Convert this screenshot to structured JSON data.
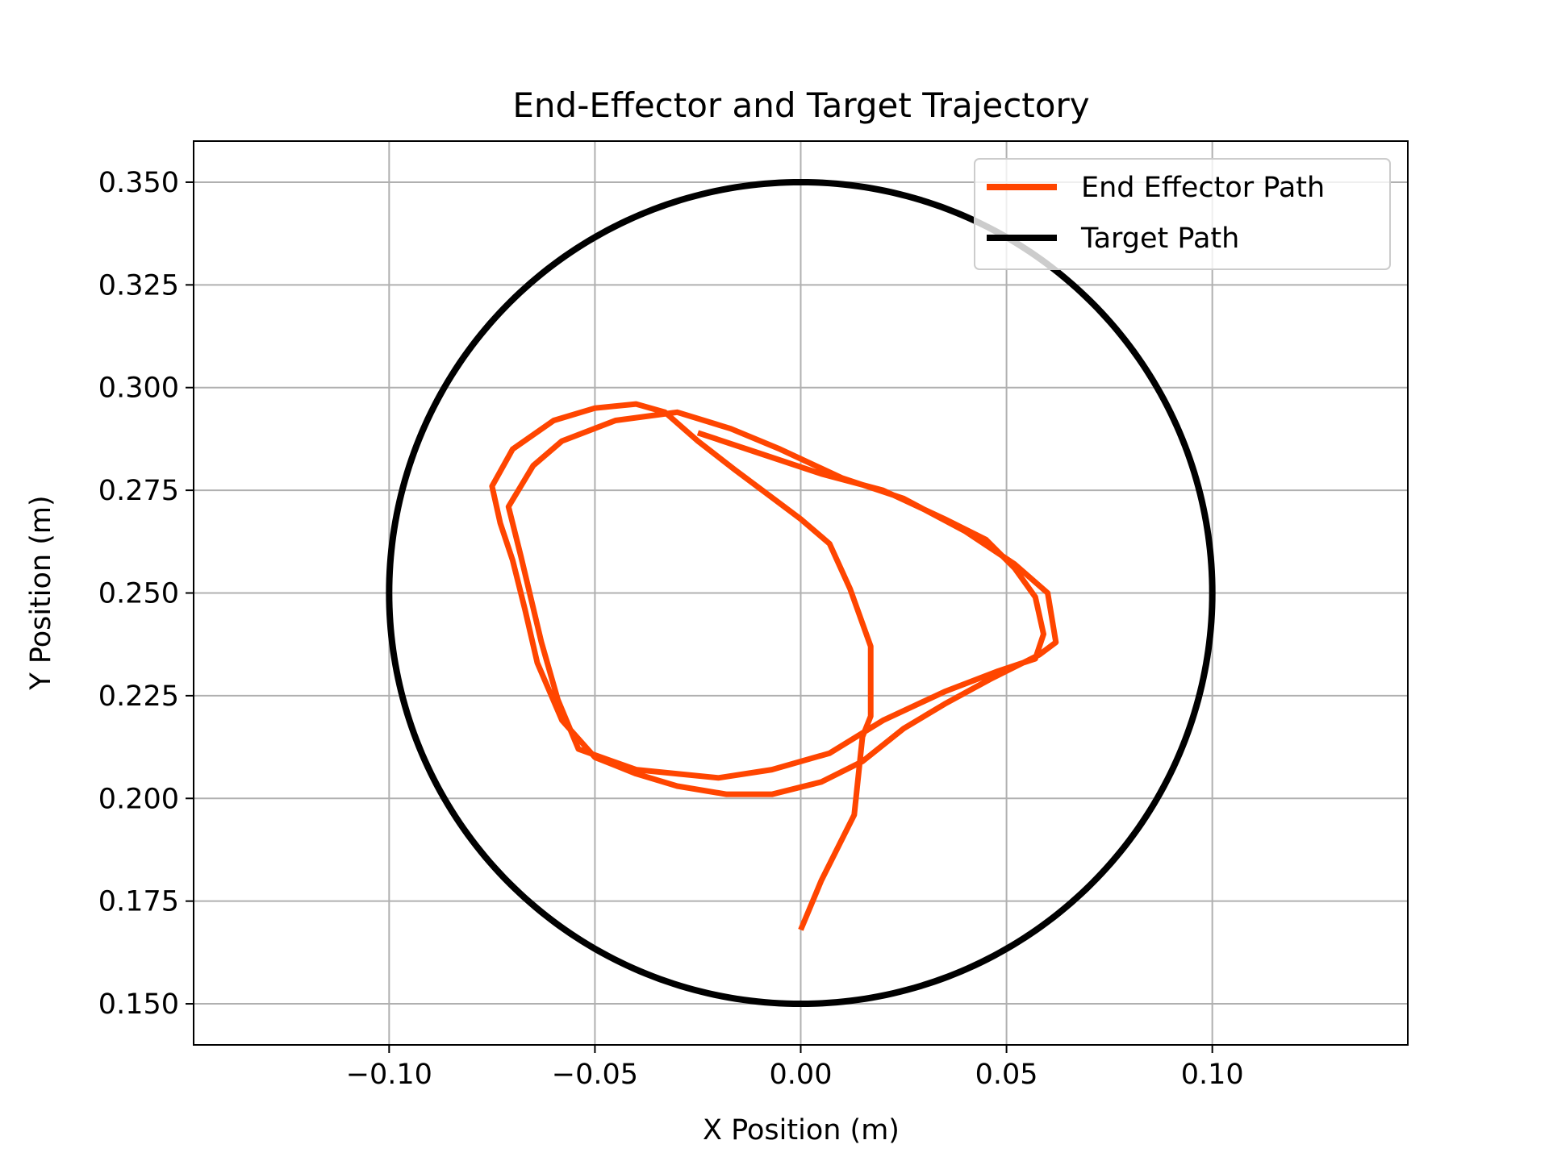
{
  "chart_data": {
    "type": "line",
    "title": "End-Effector and Target Trajectory",
    "xlabel": "X Position (m)",
    "ylabel": "Y Position (m)",
    "xlim": [
      -0.1475,
      0.1475
    ],
    "ylim": [
      0.14,
      0.36
    ],
    "x_ticks": [
      -0.1,
      -0.05,
      0.0,
      0.05,
      0.1
    ],
    "x_tick_labels": [
      "−0.10",
      "−0.05",
      "0.00",
      "0.05",
      "0.10"
    ],
    "y_ticks": [
      0.15,
      0.175,
      0.2,
      0.225,
      0.25,
      0.275,
      0.3,
      0.325,
      0.35
    ],
    "y_tick_labels": [
      "0.150",
      "0.175",
      "0.200",
      "0.225",
      "0.250",
      "0.275",
      "0.300",
      "0.325",
      "0.350"
    ],
    "grid": true,
    "legend_position": "top-right",
    "series": [
      {
        "name": "End Effector Path",
        "color": "#ff4500",
        "points": [
          [
            0.0,
            0.168
          ],
          [
            0.005,
            0.18
          ],
          [
            0.01,
            0.19
          ],
          [
            0.013,
            0.196
          ],
          [
            0.015,
            0.215
          ],
          [
            0.017,
            0.22
          ],
          [
            0.017,
            0.237
          ],
          [
            0.012,
            0.251
          ],
          [
            0.007,
            0.262
          ],
          [
            0.0,
            0.268
          ],
          [
            -0.008,
            0.274
          ],
          [
            -0.016,
            0.28
          ],
          [
            -0.025,
            0.287
          ],
          [
            -0.033,
            0.294
          ],
          [
            -0.04,
            0.296
          ],
          [
            -0.05,
            0.295
          ],
          [
            -0.06,
            0.292
          ],
          [
            -0.07,
            0.285
          ],
          [
            -0.075,
            0.276
          ],
          [
            -0.073,
            0.267
          ],
          [
            -0.07,
            0.258
          ],
          [
            -0.067,
            0.246
          ],
          [
            -0.064,
            0.233
          ],
          [
            -0.058,
            0.219
          ],
          [
            -0.05,
            0.21
          ],
          [
            -0.04,
            0.206
          ],
          [
            -0.03,
            0.203
          ],
          [
            -0.018,
            0.201
          ],
          [
            -0.007,
            0.201
          ],
          [
            0.005,
            0.204
          ],
          [
            0.015,
            0.209
          ],
          [
            0.025,
            0.217
          ],
          [
            0.035,
            0.223
          ],
          [
            0.046,
            0.229
          ],
          [
            0.058,
            0.235
          ],
          [
            0.062,
            0.238
          ],
          [
            0.06,
            0.25
          ],
          [
            0.052,
            0.257
          ],
          [
            0.04,
            0.265
          ],
          [
            0.025,
            0.273
          ],
          [
            0.01,
            0.278
          ],
          [
            -0.005,
            0.285
          ],
          [
            -0.017,
            0.29
          ],
          [
            -0.03,
            0.294
          ],
          [
            -0.045,
            0.292
          ],
          [
            -0.058,
            0.287
          ],
          [
            -0.065,
            0.281
          ],
          [
            -0.071,
            0.271
          ],
          [
            -0.068,
            0.259
          ],
          [
            -0.063,
            0.238
          ],
          [
            -0.059,
            0.224
          ],
          [
            -0.054,
            0.212
          ],
          [
            -0.04,
            0.207
          ],
          [
            -0.02,
            0.205
          ],
          [
            -0.007,
            0.207
          ],
          [
            0.007,
            0.211
          ],
          [
            0.02,
            0.219
          ],
          [
            0.035,
            0.226
          ],
          [
            0.048,
            0.231
          ],
          [
            0.057,
            0.234
          ],
          [
            0.059,
            0.24
          ],
          [
            0.057,
            0.249
          ],
          [
            0.052,
            0.256
          ],
          [
            0.045,
            0.263
          ],
          [
            0.035,
            0.268
          ],
          [
            0.02,
            0.275
          ],
          [
            0.005,
            0.279
          ],
          [
            -0.01,
            0.284
          ],
          [
            -0.025,
            0.289
          ]
        ]
      },
      {
        "name": "Target Path",
        "color": "#000000",
        "circle": {
          "center": [
            0.0,
            0.25
          ],
          "radius": 0.1
        }
      }
    ]
  }
}
